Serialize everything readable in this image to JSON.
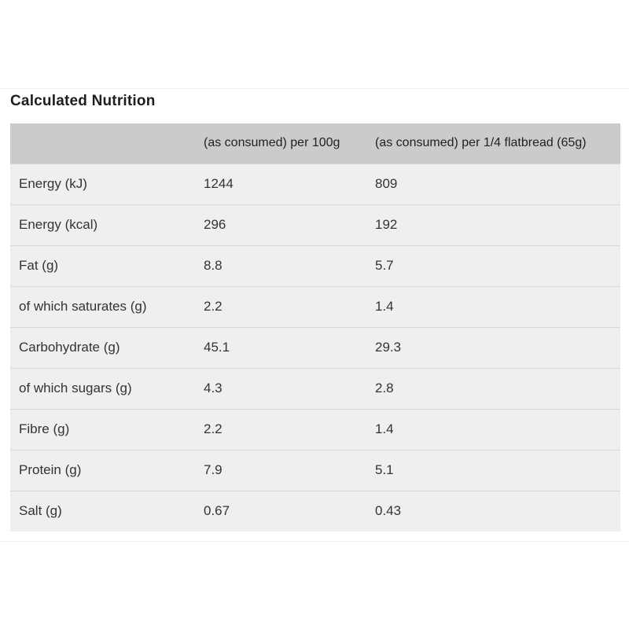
{
  "title": "Calculated Nutrition",
  "table": {
    "headers": [
      "",
      "(as consumed) per 100g",
      "(as consumed) per 1/4 flatbread (65g)"
    ],
    "rows": [
      [
        "Energy (kJ)",
        "1244",
        "809"
      ],
      [
        "Energy (kcal)",
        "296",
        "192"
      ],
      [
        "Fat (g)",
        "8.8",
        "5.7"
      ],
      [
        "of which saturates (g)",
        "2.2",
        "1.4"
      ],
      [
        "Carbohydrate (g)",
        "45.1",
        "29.3"
      ],
      [
        "of which sugars (g)",
        "4.3",
        "2.8"
      ],
      [
        "Fibre (g)",
        "2.2",
        "1.4"
      ],
      [
        "Protein (g)",
        "7.9",
        "5.1"
      ],
      [
        "Salt (g)",
        "0.67",
        "0.43"
      ]
    ]
  }
}
